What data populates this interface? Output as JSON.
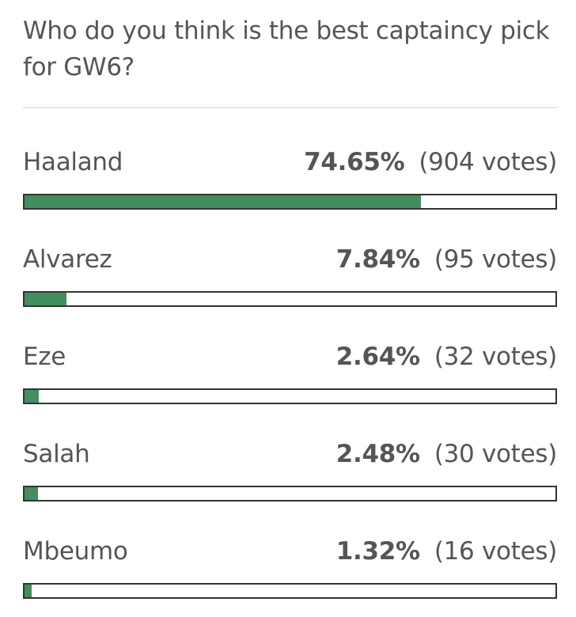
{
  "poll": {
    "question": "Who do you think is the best captaincy pick for GW6?",
    "bar_color": "#418f5e",
    "options": [
      {
        "name": "Haaland",
        "percent_label": "74.65%",
        "votes_label": "(904 votes)",
        "percent": 74.65
      },
      {
        "name": "Alvarez",
        "percent_label": "7.84%",
        "votes_label": "(95 votes)",
        "percent": 7.84
      },
      {
        "name": "Eze",
        "percent_label": "2.64%",
        "votes_label": "(32 votes)",
        "percent": 2.64
      },
      {
        "name": "Salah",
        "percent_label": "2.48%",
        "votes_label": "(30 votes)",
        "percent": 2.48
      },
      {
        "name": "Mbeumo",
        "percent_label": "1.32%",
        "votes_label": "(16 votes)",
        "percent": 1.32
      }
    ]
  }
}
